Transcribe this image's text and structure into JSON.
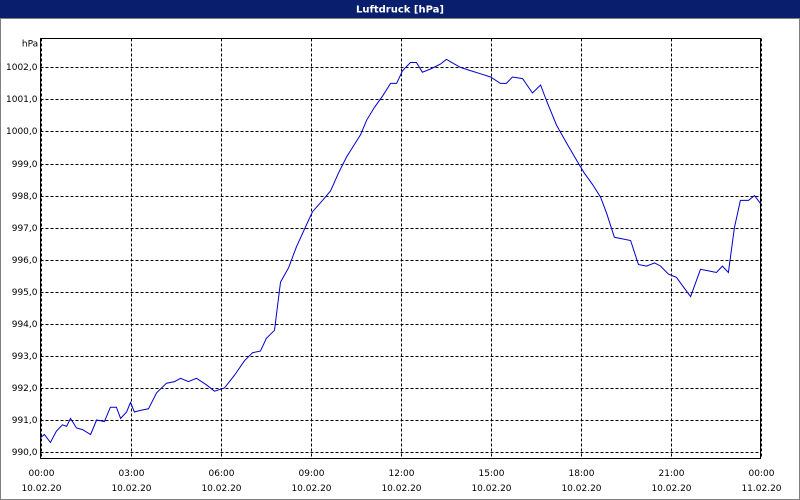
{
  "chart_data": {
    "type": "line",
    "title": "Luftdruck [hPa]",
    "y_unit_label": "hPa",
    "series": [
      {
        "color": "#0000cc",
        "x": [
          0,
          0.13,
          0.33,
          0.53,
          0.73,
          0.87,
          1.0,
          1.2,
          1.4,
          1.67,
          1.87,
          2.13,
          2.33,
          2.53,
          2.67,
          2.87,
          3.0,
          3.13,
          3.33,
          3.6,
          3.87,
          4.2,
          4.47,
          4.67,
          4.93,
          5.2,
          5.53,
          5.8,
          6.13,
          6.47,
          6.8,
          7.07,
          7.33,
          7.53,
          7.8,
          8.0,
          8.27,
          8.53,
          8.87,
          9.07,
          9.4,
          9.67,
          9.93,
          10.2,
          10.4,
          10.67,
          10.87,
          11.13,
          11.4,
          11.67,
          11.87,
          12.07,
          12.33,
          12.53,
          12.73,
          13.0,
          13.33,
          13.53,
          13.8,
          14.0,
          14.33,
          14.67,
          15.0,
          15.33,
          15.53,
          15.73,
          16.07,
          16.4,
          16.67,
          16.87,
          17.2,
          17.53,
          17.87,
          18.13,
          18.4,
          18.67,
          18.87,
          19.13,
          19.4,
          19.67,
          19.93,
          20.2,
          20.47,
          20.67,
          20.93,
          21.2,
          21.47,
          21.67,
          22.0,
          22.27,
          22.53,
          22.73,
          22.93,
          23.13,
          23.33,
          23.6,
          23.8,
          24.0
        ],
        "values": [
          990.45,
          990.55,
          990.3,
          990.65,
          990.85,
          990.8,
          991.05,
          990.75,
          990.7,
          990.55,
          991.0,
          990.95,
          991.4,
          991.4,
          991.05,
          991.25,
          991.55,
          991.25,
          991.3,
          991.35,
          991.85,
          992.15,
          992.2,
          992.3,
          992.2,
          992.3,
          992.1,
          991.9,
          992.0,
          992.4,
          992.85,
          993.1,
          993.15,
          993.55,
          993.8,
          995.3,
          995.75,
          996.4,
          997.1,
          997.5,
          997.85,
          998.15,
          998.7,
          999.2,
          999.5,
          999.9,
          1000.35,
          1000.75,
          1001.1,
          1001.5,
          1001.5,
          1001.9,
          1002.15,
          1002.15,
          1001.85,
          1001.95,
          1002.1,
          1002.25,
          1002.1,
          1002.0,
          1001.9,
          1001.8,
          1001.7,
          1001.5,
          1001.5,
          1001.7,
          1001.65,
          1001.2,
          1001.45,
          1000.95,
          1000.2,
          999.65,
          999.1,
          998.7,
          998.35,
          997.95,
          997.45,
          996.7,
          996.65,
          996.6,
          995.85,
          995.8,
          995.9,
          995.8,
          995.55,
          995.45,
          995.1,
          994.85,
          995.7,
          995.65,
          995.6,
          995.8,
          995.6,
          997.0,
          997.85,
          997.85,
          998.0,
          997.75
        ]
      }
    ],
    "xlim": [
      0,
      24
    ],
    "ylim": [
      989.8,
      1002.9
    ],
    "xticks": [
      {
        "value": 0,
        "label": "00:00"
      },
      {
        "value": 3,
        "label": "03:00"
      },
      {
        "value": 6,
        "label": "06:00"
      },
      {
        "value": 9,
        "label": "09:00"
      },
      {
        "value": 12,
        "label": "12:00"
      },
      {
        "value": 15,
        "label": "15:00"
      },
      {
        "value": 18,
        "label": "18:00"
      },
      {
        "value": 21,
        "label": "21:00"
      },
      {
        "value": 24,
        "label": "00:00"
      }
    ],
    "xtick_dates": [
      "10.02.20",
      "10.02.20",
      "10.02.20",
      "10.02.20",
      "10.02.20",
      "10.02.20",
      "10.02.20",
      "10.02.20",
      "11.02.20"
    ],
    "yticks": [
      {
        "value": 990,
        "label": "990,0"
      },
      {
        "value": 991,
        "label": "991,0"
      },
      {
        "value": 992,
        "label": "992,0"
      },
      {
        "value": 993,
        "label": "993,0"
      },
      {
        "value": 994,
        "label": "994,0"
      },
      {
        "value": 995,
        "label": "995,0"
      },
      {
        "value": 996,
        "label": "996,0"
      },
      {
        "value": 997,
        "label": "997,0"
      },
      {
        "value": 998,
        "label": "998,0"
      },
      {
        "value": 999,
        "label": "999,0"
      },
      {
        "value": 1000,
        "label": "1000,0"
      },
      {
        "value": 1001,
        "label": "1001,0"
      },
      {
        "value": 1002,
        "label": "1002,0"
      }
    ],
    "grid": true
  }
}
